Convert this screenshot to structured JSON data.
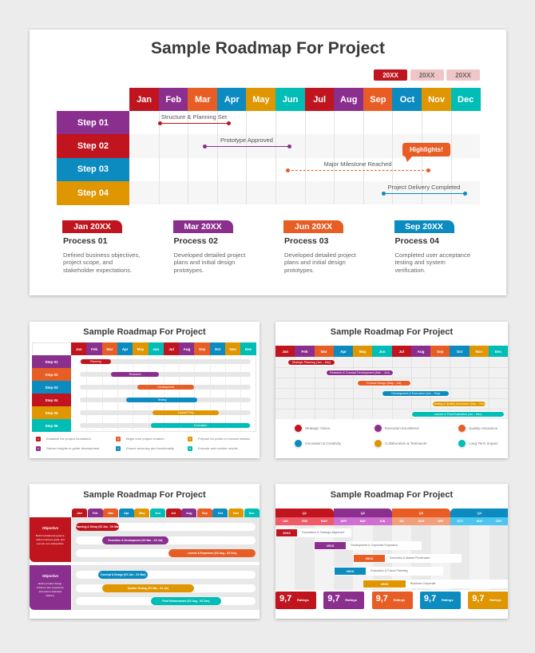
{
  "colors": {
    "red": "#c0141e",
    "purple": "#8b2f8e",
    "orange": "#e85d24",
    "blue": "#0b8bc0",
    "yellow": "#df9600",
    "teal": "#00bdb5"
  },
  "months": [
    "Jan",
    "Feb",
    "Mar",
    "Apr",
    "May",
    "Jun",
    "Jul",
    "Aug",
    "Sep",
    "Oct",
    "Nov",
    "Dec"
  ],
  "month_colors": [
    "red",
    "purple",
    "orange",
    "blue",
    "yellow",
    "teal",
    "red",
    "purple",
    "orange",
    "blue",
    "yellow",
    "teal"
  ],
  "main": {
    "title": "Sample Roadmap For Project",
    "years": [
      {
        "label": "20XX",
        "active": true
      },
      {
        "label": "20XX",
        "active": false
      },
      {
        "label": "20XX",
        "active": false
      }
    ],
    "steps": [
      {
        "label": "Step 01",
        "color": "purple",
        "milestone": "Structure & Planning Set",
        "line_color": "red",
        "start": "Jan",
        "end": "Mar",
        "dashed": false
      },
      {
        "label": "Step 02",
        "color": "red",
        "milestone": "Prototype Approved",
        "line_color": "purple",
        "start": "Mar",
        "end": "Jun",
        "dashed": false
      },
      {
        "label": "Step 03",
        "color": "blue",
        "milestone": "Major Milestone Reached",
        "line_color": "orange",
        "start": "Jun",
        "end": "Oct",
        "dashed": true
      },
      {
        "label": "Step 04",
        "color": "yellow",
        "milestone": "Project Delivery Completed",
        "line_color": "blue",
        "start": "Sep",
        "end": "Dec",
        "dashed": false
      }
    ],
    "highlight": "Highlights!",
    "processes": [
      {
        "date": "Jan 20XX",
        "color": "red",
        "title": "Process 01",
        "desc": "Defined business objectives, project scope, and stakeholder expectations."
      },
      {
        "date": "Mar 20XX",
        "color": "purple",
        "title": "Process 02",
        "desc": "Developed detailed project plans and initial design prototypes."
      },
      {
        "date": "Jun 20XX",
        "color": "orange",
        "title": "Process 03",
        "desc": "Developed detailed project plans and initial design prototypes."
      },
      {
        "date": "Sep 20XX",
        "color": "blue",
        "title": "Process 04",
        "desc": "Completed user acceptance testing and system verification."
      }
    ]
  },
  "thumb1": {
    "title": "Sample Roadmap For Project",
    "steps": [
      {
        "label": "Step 01",
        "color": "purple",
        "bar": "Planning",
        "bar_color": "red",
        "start": 0.6,
        "end": 2.6
      },
      {
        "label": "Step 02",
        "color": "orange",
        "bar": "Research",
        "bar_color": "purple",
        "start": 2.6,
        "end": 5.7
      },
      {
        "label": "Step 03",
        "color": "blue",
        "bar": "Development",
        "bar_color": "orange",
        "start": 4.3,
        "end": 8.0
      },
      {
        "label": "Step 04",
        "color": "red",
        "bar": "Testing",
        "bar_color": "blue",
        "start": 3.6,
        "end": 8.2
      },
      {
        "label": "Step 05",
        "color": "yellow",
        "bar": "Launch Prep",
        "bar_color": "yellow",
        "start": 5.3,
        "end": 9.6
      },
      {
        "label": "Step 06",
        "color": "teal",
        "bar": "Evaluation",
        "bar_color": "teal",
        "start": 5.2,
        "end": 11.6
      }
    ],
    "legend": [
      {
        "num": "1",
        "color": "red",
        "text": "Establish the project foundation."
      },
      {
        "num": "3",
        "color": "orange",
        "text": "Begin core project creation."
      },
      {
        "num": "5",
        "color": "yellow",
        "text": "Prepare for public or internal release."
      },
      {
        "num": "2",
        "color": "purple",
        "text": "Gather insights to guide development."
      },
      {
        "num": "4",
        "color": "blue",
        "text": "Ensure accuracy and functionality."
      },
      {
        "num": "6",
        "color": "teal",
        "text": "Execute and monitor results."
      }
    ]
  },
  "thumb2": {
    "title": "Sample Roadmap For Project",
    "bars": [
      {
        "label": "Strategic Planning (Jan – Mar)",
        "color": "red",
        "start": 0.6,
        "end": 3.1
      },
      {
        "label": "Research & Concept Development (Mar – Jun)",
        "color": "purple",
        "start": 2.6,
        "end": 6.1
      },
      {
        "label": "Product Design (May – Jul)",
        "color": "orange",
        "start": 4.2,
        "end": 7.0
      },
      {
        "label": "Development & Execution (Jun – Sep)",
        "color": "blue",
        "start": 5.5,
        "end": 9.0
      },
      {
        "label": "Testing & Quality Assurance (Sep – Nov)",
        "color": "yellow",
        "start": 8.1,
        "end": 10.9
      },
      {
        "label": "Launch & Post-Evaluation (Jul – Dec)",
        "color": "teal",
        "start": 7.0,
        "end": 11.85
      }
    ],
    "legend": [
      {
        "color": "red",
        "text": "Strategic Vision"
      },
      {
        "color": "purple",
        "text": "Execution Excellence"
      },
      {
        "color": "orange",
        "text": "Quality Assurance"
      },
      {
        "color": "blue",
        "text": "Innovation & Creativity"
      },
      {
        "color": "yellow",
        "text": "Collaboration & Teamwork"
      },
      {
        "color": "teal",
        "text": "Long-Term Impact"
      }
    ]
  },
  "thumb3": {
    "title": "Sample Roadmap For Project",
    "groups": [
      {
        "heading": "Objective",
        "desc": "Build foundational systems, define business goals, and execute core deliverables.",
        "color": "red",
        "bars": [
          {
            "label": "Planning & Setup (XX Jan - XX Mar)",
            "color": "red",
            "start": 0,
            "end": 2.9
          },
          {
            "label": "Execution & Development (XX Mar - XX Jul)",
            "color": "purple",
            "start": 1.75,
            "end": 6.2
          },
          {
            "label": "Launch & Expansion (XX Aug - XX Dec)",
            "color": "orange",
            "start": 6.2,
            "end": 12
          }
        ]
      },
      {
        "heading": "Objective",
        "desc": "Refine product design, enhance user experience, and ensure seamless delivery.",
        "color": "purple",
        "bars": [
          {
            "label": "Concept & Design (XX Jan - XX Mar)",
            "color": "blue",
            "start": 1.5,
            "end": 4.8
          },
          {
            "label": "System Testing (XX Mar - XX Jul)",
            "color": "yellow",
            "start": 1.75,
            "end": 7.9
          },
          {
            "label": "Final Enhancement (XX Aug - XX Dec)",
            "color": "teal",
            "start": 5.0,
            "end": 9.7
          }
        ]
      }
    ]
  },
  "thumb4": {
    "title": "Sample Roadmap For Project",
    "quarters": [
      {
        "label": "Q1",
        "color": "#c0141e",
        "sub": "#ef5b68",
        "months": [
          "JAN",
          "FEB",
          "MAR"
        ]
      },
      {
        "label": "Q2",
        "color": "#8b2f8e",
        "sub": "#cf6fcf",
        "months": [
          "APR",
          "MAY",
          "JUN"
        ]
      },
      {
        "label": "Q3",
        "color": "#e85d24",
        "sub": "#f2a07c",
        "months": [
          "JUL",
          "AUG",
          "SEP"
        ]
      },
      {
        "label": "Q4",
        "color": "#0b8bc0",
        "sub": "#4cc6ef",
        "months": [
          "OCT",
          "NOV",
          "DEC"
        ]
      }
    ],
    "items": [
      {
        "year": "20XX",
        "color": "red",
        "label": "Foundation & Strategic Alignment"
      },
      {
        "year": "20XX",
        "color": "purple",
        "label": "Development & Corporate Expansion"
      },
      {
        "year": "20XX",
        "color": "orange",
        "label": "Execution & Market Penetration"
      },
      {
        "year": "20XX",
        "color": "blue",
        "label": "Evaluation & Future Planning"
      },
      {
        "year": "20XX",
        "color": "yellow",
        "label": "Business Corporate"
      }
    ],
    "ratings": [
      {
        "value": "9,7",
        "label": "Ratings",
        "color": "red"
      },
      {
        "value": "9,7",
        "label": "Ratings",
        "color": "purple"
      },
      {
        "value": "9,7",
        "label": "Ratings",
        "color": "orange"
      },
      {
        "value": "9,7",
        "label": "Ratings",
        "color": "blue"
      },
      {
        "value": "9,7",
        "label": "Ratings",
        "color": "yellow"
      }
    ]
  }
}
